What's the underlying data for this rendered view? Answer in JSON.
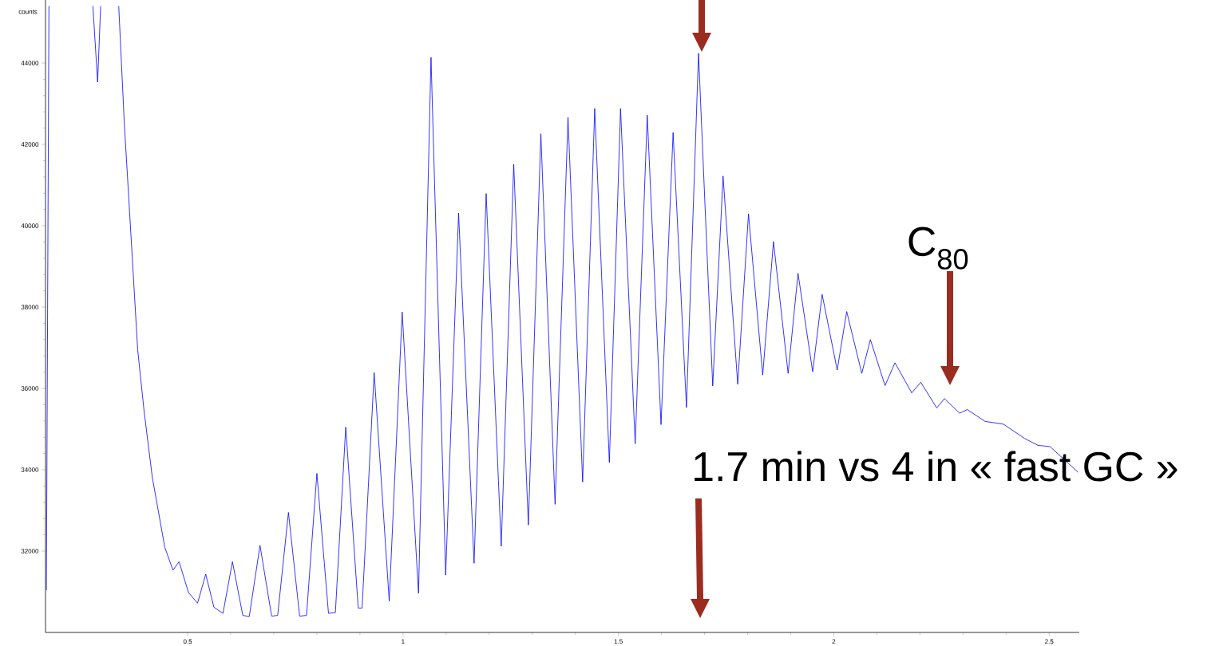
{
  "chart_data": {
    "type": "line",
    "ylabel": "counts",
    "xlim": [
      0.17,
      2.57
    ],
    "ylim": [
      30000,
      45550
    ],
    "xticks": [
      0.5,
      1,
      1.5,
      2,
      2.5
    ],
    "yticks": [
      32000,
      34000,
      36000,
      38000,
      40000,
      42000,
      44000
    ],
    "x": [
      0.172,
      0.178,
      0.24,
      0.28,
      0.291,
      0.298,
      0.32,
      0.34,
      0.353,
      0.37,
      0.384,
      0.399,
      0.418,
      0.447,
      0.466,
      0.48,
      0.502,
      0.523,
      0.542,
      0.561,
      0.582,
      0.604,
      0.628,
      0.643,
      0.668,
      0.695,
      0.709,
      0.734,
      0.76,
      0.776,
      0.8,
      0.827,
      0.843,
      0.867,
      0.896,
      0.905,
      0.933,
      0.968,
      0.998,
      1.036,
      1.065,
      1.099,
      1.129,
      1.165,
      1.193,
      1.228,
      1.257,
      1.291,
      1.32,
      1.353,
      1.383,
      1.417,
      1.445,
      1.479,
      1.505,
      1.539,
      1.567,
      1.599,
      1.627,
      1.658,
      1.686,
      1.719,
      1.743,
      1.777,
      1.802,
      1.835,
      1.86,
      1.894,
      1.917,
      1.951,
      1.973,
      2.008,
      2.03,
      2.065,
      2.085,
      2.119,
      2.142,
      2.181,
      2.202,
      2.239,
      2.257,
      2.292,
      2.31,
      2.351,
      2.394,
      2.443,
      2.474,
      2.502,
      2.567
    ],
    "series": [
      {
        "color": "#0000ff",
        "values": [
          31040,
          45400,
          null,
          45400,
          43530,
          45400,
          null,
          45400,
          42510,
          39480,
          36950,
          35430,
          33810,
          32090,
          31530,
          31740,
          30980,
          30720,
          31430,
          30620,
          30470,
          31740,
          30420,
          30390,
          32140,
          30400,
          30420,
          32950,
          30400,
          30420,
          33910,
          30470,
          30490,
          35050,
          30600,
          30600,
          36390,
          30770,
          37880,
          30960,
          44140,
          31410,
          40310,
          31700,
          40790,
          32120,
          41510,
          32640,
          42260,
          33150,
          42660,
          33700,
          42880,
          34180,
          42880,
          34640,
          42720,
          35110,
          42290,
          35530,
          44240,
          36060,
          41220,
          36100,
          40290,
          36330,
          39610,
          36370,
          38830,
          36410,
          38310,
          36450,
          37890,
          36370,
          37200,
          36070,
          36630,
          35890,
          36150,
          35520,
          35750,
          35390,
          35480,
          35190,
          35120,
          34770,
          34600,
          34570,
          33940
        ]
      }
    ],
    "annotations": [
      "C$_{80}$",
      "1.7 min vs 4 in « fast GC »"
    ]
  }
}
